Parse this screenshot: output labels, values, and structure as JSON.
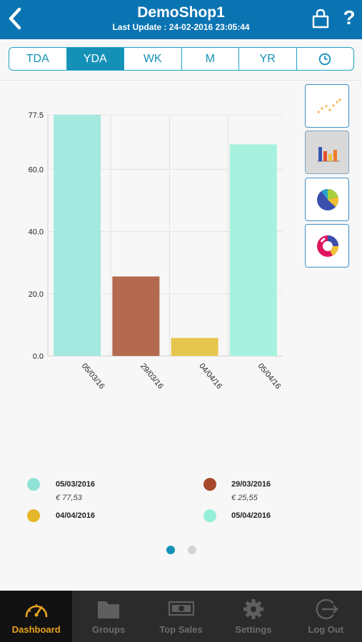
{
  "header": {
    "title": "DemoShop1",
    "last_update": "Last Update : 24-02-2016 23:05:44",
    "bg_color": "#0a74b3"
  },
  "tabs": [
    {
      "label": "TDA",
      "active": false
    },
    {
      "label": "YDA",
      "active": true
    },
    {
      "label": "WK",
      "active": false
    },
    {
      "label": "M",
      "active": false
    },
    {
      "label": "YR",
      "active": false
    },
    {
      "label": "",
      "icon": "clock-icon",
      "active": false
    }
  ],
  "chart_types": [
    {
      "icon": "line-chart-icon",
      "active": false
    },
    {
      "icon": "bar-chart-icon",
      "active": true
    },
    {
      "icon": "pie-chart-icon",
      "active": false
    },
    {
      "icon": "donut-chart-icon",
      "active": false
    }
  ],
  "chart_data": {
    "type": "bar",
    "categories": [
      "05/03/2016",
      "29/03/2016",
      "04/04/2016",
      "05/04/2016"
    ],
    "tick_labels": [
      "05/03/16",
      "29/03/16",
      "04/04/16",
      "05/04/16"
    ],
    "values": [
      77.53,
      25.55,
      5.8,
      68.0
    ],
    "colors": [
      "#a5e8e0",
      "#b46a4e",
      "#e6c64e",
      "#a6f2de"
    ],
    "ylim": [
      0,
      77.5
    ],
    "yticks": [
      "0.0",
      "20.0",
      "40.0",
      "60.0",
      "77.5"
    ],
    "grid": true
  },
  "legend": [
    {
      "date": "05/03/2016",
      "value": "€ 77,53",
      "color": "#8fe3d6"
    },
    {
      "date": "29/03/2016",
      "value": "€ 25,55",
      "color": "#a7492b"
    },
    {
      "date": "04/04/2016",
      "value": "",
      "color": "#e5b62a"
    },
    {
      "date": "05/04/2016",
      "value": "",
      "color": "#96efd9"
    }
  ],
  "pager": {
    "pages": 2,
    "current": 1
  },
  "bottom_nav": [
    {
      "label": "Dashboard",
      "icon": "speedometer-icon",
      "active": true
    },
    {
      "label": "Groups",
      "icon": "folder-icon",
      "active": false
    },
    {
      "label": "Top Sales",
      "icon": "cash-icon",
      "active": false
    },
    {
      "label": "Settings",
      "icon": "gear-icon",
      "active": false
    },
    {
      "label": "Log Out",
      "icon": "logout-icon",
      "active": false
    }
  ]
}
